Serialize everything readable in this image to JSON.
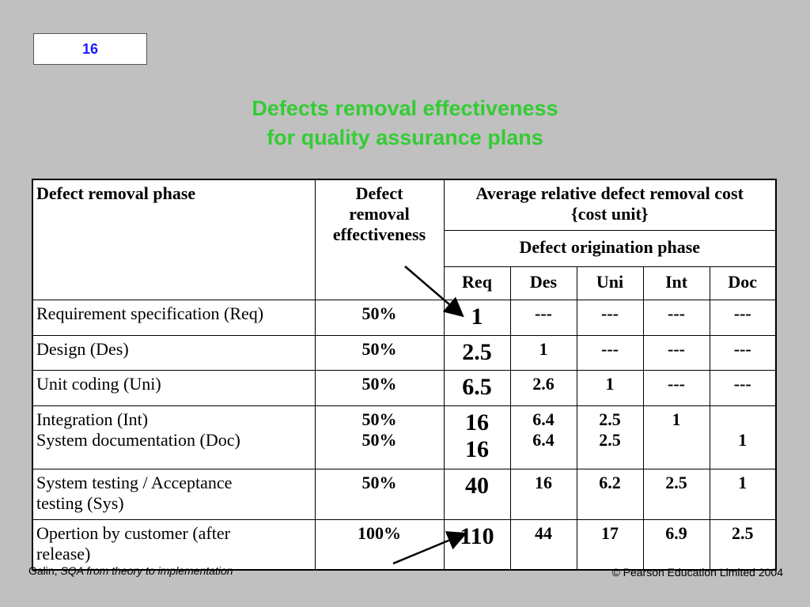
{
  "slide": {
    "number": "16"
  },
  "title": {
    "line1": "Defects removal effectiveness",
    "line2": "for quality assurance plans"
  },
  "table": {
    "headers": {
      "phase": "Defect removal phase",
      "effectiveness": [
        "Defect",
        "removal",
        "effectiveness"
      ],
      "avg_cost": [
        "Average relative defect removal cost",
        "{cost unit}"
      ],
      "origination": "Defect origination phase",
      "subcols": [
        "Req",
        "Des",
        "Uni",
        "Int",
        "Doc"
      ]
    },
    "rows": [
      {
        "phase": [
          "Requirement specification (Req)"
        ],
        "effectiveness": [
          "50%"
        ],
        "total": [
          "1"
        ],
        "req": "",
        "des": [
          "---"
        ],
        "uni": [
          "---"
        ],
        "int": [
          "---"
        ],
        "doc": [
          "---"
        ]
      },
      {
        "phase": [
          "Design (Des)"
        ],
        "effectiveness": [
          "50%"
        ],
        "total": [
          "2.5"
        ],
        "des": [
          "1"
        ],
        "uni": [
          "---"
        ],
        "int": [
          "---"
        ],
        "doc": [
          "---"
        ]
      },
      {
        "phase": [
          "Unit coding (Uni)"
        ],
        "effectiveness": [
          "50%"
        ],
        "total": [
          "6.5"
        ],
        "des": [
          "2.6"
        ],
        "uni": [
          "1"
        ],
        "int": [
          "---"
        ],
        "doc": [
          "---"
        ]
      },
      {
        "phase": [
          "Integration (Int)",
          "System documentation (Doc)"
        ],
        "effectiveness": [
          "50%",
          "50%"
        ],
        "total": [
          "16",
          "16"
        ],
        "des": [
          "6.4",
          "6.4"
        ],
        "uni": [
          "2.5",
          "2.5"
        ],
        "int": [
          "1",
          ""
        ],
        "doc": [
          "",
          "1"
        ]
      },
      {
        "phase": [
          "System testing / Acceptance",
          "testing (Sys)"
        ],
        "effectiveness": [
          "50%"
        ],
        "total": [
          "40"
        ],
        "des": [
          "16"
        ],
        "uni": [
          "6.2"
        ],
        "int": [
          "2.5"
        ],
        "doc": [
          "1"
        ]
      },
      {
        "phase": [
          "Opertion by customer (after",
          "release)"
        ],
        "effectiveness": [
          "100%"
        ],
        "total": [
          "110"
        ],
        "des": [
          "44"
        ],
        "uni": [
          "17"
        ],
        "int": [
          "6.9"
        ],
        "doc": [
          "2.5"
        ]
      }
    ]
  },
  "footer": {
    "author": "Galin,",
    "book": "SQA from theory to implementation",
    "copyright": "© Pearson Education Limited 2004"
  },
  "colors": {
    "background": "#c0c0c0",
    "title": "#33cc33",
    "slide_number": "#1a1aff"
  }
}
